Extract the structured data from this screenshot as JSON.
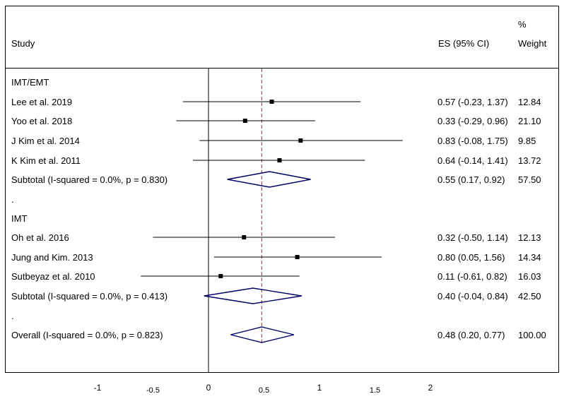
{
  "chart_data": {
    "type": "forest",
    "header": {
      "study": "Study",
      "es": "ES (95% CI)",
      "weight_line1": "%",
      "weight_line2": "Weight"
    },
    "null_line": 0,
    "overall_line": 0.48,
    "x_ticks": [
      {
        "value": -1,
        "label": "-1"
      },
      {
        "value": -0.5,
        "label": "-0.5"
      },
      {
        "value": 0,
        "label": "0"
      },
      {
        "value": 0.5,
        "label": "0.5"
      },
      {
        "value": 1,
        "label": "1"
      },
      {
        "value": 1.5,
        "label": "1.5"
      },
      {
        "value": 2,
        "label": "2"
      }
    ],
    "rows": [
      {
        "kind": "group",
        "label": "IMT/EMT"
      },
      {
        "kind": "study",
        "label": "Lee et al. 2019",
        "es": 0.57,
        "lo": -0.23,
        "hi": 1.37,
        "es_text": "0.57 (-0.23, 1.37)",
        "weight": "12.84"
      },
      {
        "kind": "study",
        "label": "Yoo et al. 2018",
        "es": 0.33,
        "lo": -0.29,
        "hi": 0.96,
        "es_text": "0.33 (-0.29, 0.96)",
        "weight": "21.10"
      },
      {
        "kind": "study",
        "label": "J Kim et al. 2014",
        "es": 0.83,
        "lo": -0.08,
        "hi": 1.75,
        "es_text": "0.83 (-0.08, 1.75)",
        "weight": "9.85"
      },
      {
        "kind": "study",
        "label": "K Kim et al. 2011",
        "es": 0.64,
        "lo": -0.14,
        "hi": 1.41,
        "es_text": "0.64 (-0.14, 1.41)",
        "weight": "13.72"
      },
      {
        "kind": "subtotal",
        "label": "Subtotal  (I-squared = 0.0%, p = 0.830)",
        "es": 0.55,
        "lo": 0.17,
        "hi": 0.92,
        "es_text": "0.55 (0.17, 0.92)",
        "weight": "57.50"
      },
      {
        "kind": "spacer",
        "label": "."
      },
      {
        "kind": "group",
        "label": "IMT"
      },
      {
        "kind": "study",
        "label": "Oh et al. 2016",
        "es": 0.32,
        "lo": -0.5,
        "hi": 1.14,
        "es_text": "0.32 (-0.50, 1.14)",
        "weight": "12.13"
      },
      {
        "kind": "study",
        "label": "Jung and Kim. 2013",
        "es": 0.8,
        "lo": 0.05,
        "hi": 1.56,
        "es_text": "0.80 (0.05, 1.56)",
        "weight": "14.34"
      },
      {
        "kind": "study",
        "label": "Sutbeyaz et al. 2010",
        "es": 0.11,
        "lo": -0.61,
        "hi": 0.82,
        "es_text": "0.11 (-0.61, 0.82)",
        "weight": "16.03"
      },
      {
        "kind": "subtotal",
        "label": "Subtotal  (I-squared = 0.0%, p = 0.413)",
        "es": 0.4,
        "lo": -0.04,
        "hi": 0.84,
        "es_text": "0.40 (-0.04, 0.84)",
        "weight": "42.50"
      },
      {
        "kind": "spacer",
        "label": "."
      },
      {
        "kind": "overall",
        "label": "Overall  (I-squared = 0.0%, p = 0.823)",
        "es": 0.48,
        "lo": 0.2,
        "hi": 0.77,
        "es_text": "0.48 (0.20, 0.77)",
        "weight": "100.00"
      }
    ],
    "colors": {
      "diamond": "#000066",
      "overall_line": "#8b3a3a",
      "line": "#000000"
    }
  }
}
